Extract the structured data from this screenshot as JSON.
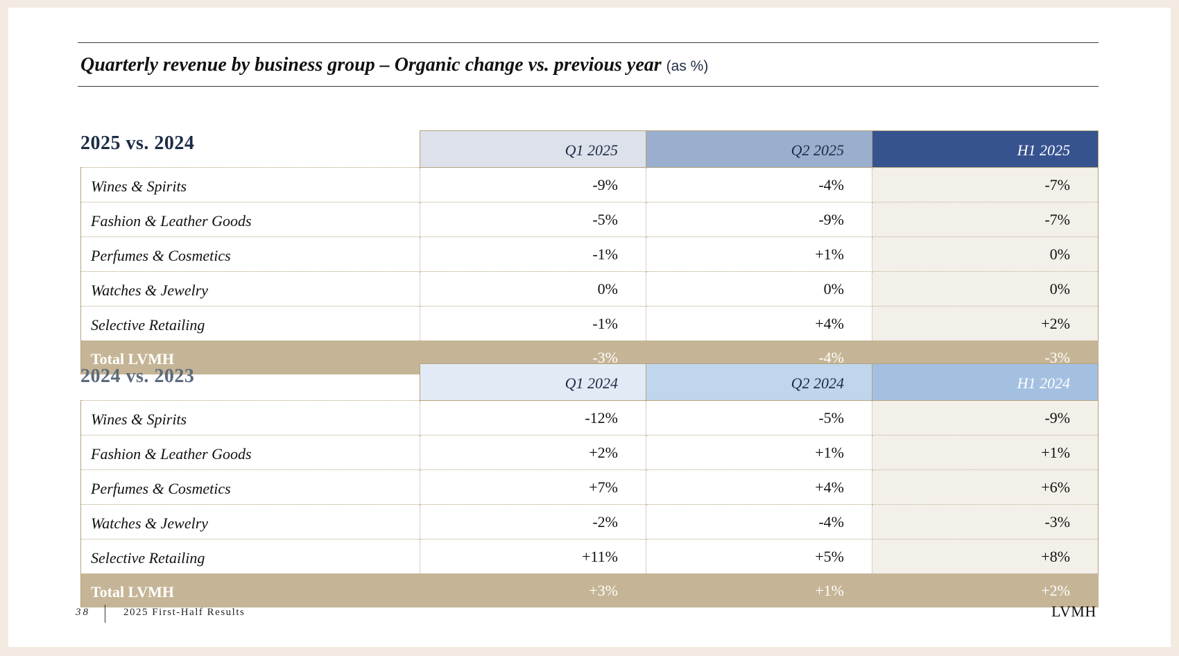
{
  "title": {
    "main": "Quarterly revenue by business group – Organic change vs. previous year",
    "unit": "(as %)"
  },
  "colors": {
    "header_2025": [
      "#dde1ea",
      "#9aaecd",
      "#36528f"
    ],
    "header_2024": [
      "#e2ebf5",
      "#c0d6ec",
      "#a4c0e1"
    ],
    "total_row_bg": "#c5b596",
    "h1_column_bg": "#f3efe9",
    "label_2025": "#1c2b45",
    "label_2024": "#5b6b7c"
  },
  "sections": [
    {
      "label": "2025 vs. 2024",
      "headers": [
        "Q1 2025",
        "Q2 2025",
        "H1 2025"
      ],
      "rows": [
        {
          "name": "Wines & Spirits",
          "values": [
            "-9%",
            "-4%",
            "-7%"
          ]
        },
        {
          "name": "Fashion & Leather Goods",
          "values": [
            "-5%",
            "-9%",
            "-7%"
          ]
        },
        {
          "name": "Perfumes & Cosmetics",
          "values": [
            "-1%",
            "+1%",
            "0%"
          ]
        },
        {
          "name": "Watches & Jewelry",
          "values": [
            "0%",
            "0%",
            "0%"
          ]
        },
        {
          "name": "Selective Retailing",
          "values": [
            "-1%",
            "+4%",
            "+2%"
          ]
        }
      ],
      "total": {
        "name": "Total LVMH",
        "values": [
          "-3%",
          "-4%",
          "-3%"
        ]
      }
    },
    {
      "label": "2024 vs. 2023",
      "headers": [
        "Q1 2024",
        "Q2 2024",
        "H1 2024"
      ],
      "rows": [
        {
          "name": "Wines & Spirits",
          "values": [
            "-12%",
            "-5%",
            "-9%"
          ]
        },
        {
          "name": "Fashion & Leather Goods",
          "values": [
            "+2%",
            "+1%",
            "+1%"
          ]
        },
        {
          "name": "Perfumes & Cosmetics",
          "values": [
            "+7%",
            "+4%",
            "+6%"
          ]
        },
        {
          "name": "Watches & Jewelry",
          "values": [
            "-2%",
            "-4%",
            "-3%"
          ]
        },
        {
          "name": "Selective Retailing",
          "values": [
            "+11%",
            "+5%",
            "+8%"
          ]
        }
      ],
      "total": {
        "name": "Total LVMH",
        "values": [
          "+3%",
          "+1%",
          "+2%"
        ]
      }
    }
  ],
  "footer": {
    "page_number": "38",
    "document_title": "2025 First-Half Results",
    "logo_text": "LVMH"
  }
}
